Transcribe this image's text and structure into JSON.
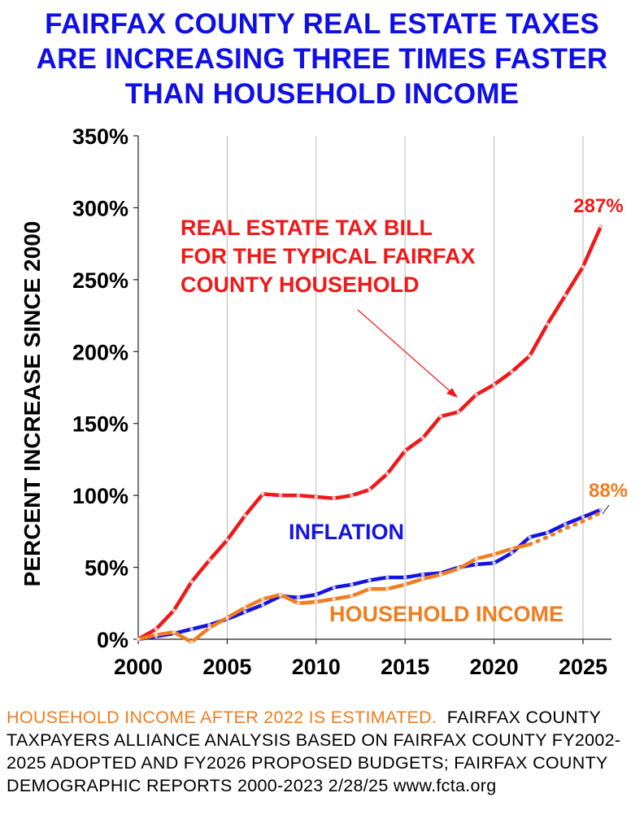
{
  "title_lines": [
    "FAIRFAX COUNTY REAL ESTATE TAXES",
    "ARE INCREASING THREE TIMES FASTER",
    "THAN HOUSEHOLD INCOME"
  ],
  "footer": {
    "estimate_note": "HOUSEHOLD INCOME AFTER 2022 IS ESTIMATED.",
    "source": "FAIRFAX COUNTY TAXPAYERS ALLIANCE ANALYSIS BASED ON FAIRFAX COUNTY FY2002-2025  ADOPTED AND FY2026 PROPOSED BUDGETS;  FAIRFAX COUNTY DEMOGRAPHIC REPORTS 2000-2023    2/28/25  www.fcta.org"
  },
  "colors": {
    "title": "#1010e6",
    "tax": "#f01818",
    "inflation": "#1414e0",
    "income": "#f07d1f",
    "grid": "#b8b8b8"
  },
  "chart_data": {
    "type": "line",
    "ylabel": "PERCENT INCREASE SINCE 2000",
    "xlabel": "",
    "xlim": [
      2000,
      2026.6
    ],
    "ylim": [
      0,
      350
    ],
    "x_ticks": [
      2000,
      2005,
      2010,
      2015,
      2020,
      2025
    ],
    "x_tick_labels": [
      "2000",
      "2005",
      "2010",
      "2015",
      "2020",
      "2025"
    ],
    "y_ticks": [
      0,
      50,
      100,
      150,
      200,
      250,
      300,
      350
    ],
    "y_tick_labels": [
      "0%",
      "50%",
      "100%",
      "150%",
      "200%",
      "250%",
      "300%",
      "350%"
    ],
    "grid": "vertical",
    "series": [
      {
        "key": "tax",
        "name": "REAL ESTATE TAX BILL FOR THE TYPICAL FAIRFAX COUNTY HOUSEHOLD",
        "x": [
          2000,
          2001,
          2002,
          2003,
          2004,
          2005,
          2006,
          2007,
          2008,
          2009,
          2010,
          2011,
          2012,
          2013,
          2014,
          2015,
          2016,
          2017,
          2018,
          2019,
          2020,
          2021,
          2022,
          2023,
          2024,
          2025,
          2026
        ],
        "y": [
          0,
          7,
          20,
          40,
          55,
          69,
          86,
          101,
          100,
          100,
          99,
          98,
          100,
          104,
          115,
          131,
          140,
          155,
          158,
          170,
          177,
          186,
          197,
          219,
          239,
          259,
          287
        ]
      },
      {
        "key": "inflation",
        "name": "INFLATION",
        "x": [
          2000,
          2001,
          2002,
          2003,
          2004,
          2005,
          2006,
          2007,
          2008,
          2009,
          2010,
          2011,
          2012,
          2013,
          2014,
          2015,
          2016,
          2017,
          2018,
          2019,
          2020,
          2021,
          2022,
          2023,
          2024,
          2025,
          2026
        ],
        "y": [
          0,
          2,
          4,
          7,
          10,
          14,
          19,
          24,
          30,
          29,
          31,
          36,
          38,
          41,
          43,
          43,
          45,
          46,
          50,
          52,
          53,
          60,
          71,
          74,
          80,
          85,
          90
        ]
      },
      {
        "key": "income",
        "name": "HOUSEHOLD INCOME",
        "x": [
          2000,
          2001,
          2002,
          2003,
          2004,
          2005,
          2006,
          2007,
          2008,
          2009,
          2010,
          2011,
          2012,
          2013,
          2014,
          2015,
          2016,
          2017,
          2018,
          2019,
          2020,
          2021,
          2022
        ],
        "y": [
          0,
          3,
          5,
          -2,
          8,
          15,
          22,
          28,
          31,
          25,
          26,
          28,
          30,
          35,
          35,
          38,
          42,
          45,
          49,
          56,
          59,
          63,
          66
        ]
      },
      {
        "key": "income_est",
        "name": "",
        "x": [
          2022,
          2023,
          2024,
          2025,
          2026
        ],
        "y": [
          66,
          71,
          77,
          82,
          88
        ],
        "estimated": true
      }
    ],
    "annotations": [
      {
        "key": "tax_label",
        "text_lines": [
          "REAL ESTATE TAX BILL",
          "FOR THE TYPICAL FAIRFAX",
          "COUNTY HOUSEHOLD"
        ]
      },
      {
        "key": "tax_end",
        "text": "287%"
      },
      {
        "key": "income_end",
        "text": "88%"
      },
      {
        "key": "inflation_label",
        "text": "INFLATION"
      },
      {
        "key": "income_label",
        "text": "HOUSEHOLD INCOME"
      }
    ]
  }
}
